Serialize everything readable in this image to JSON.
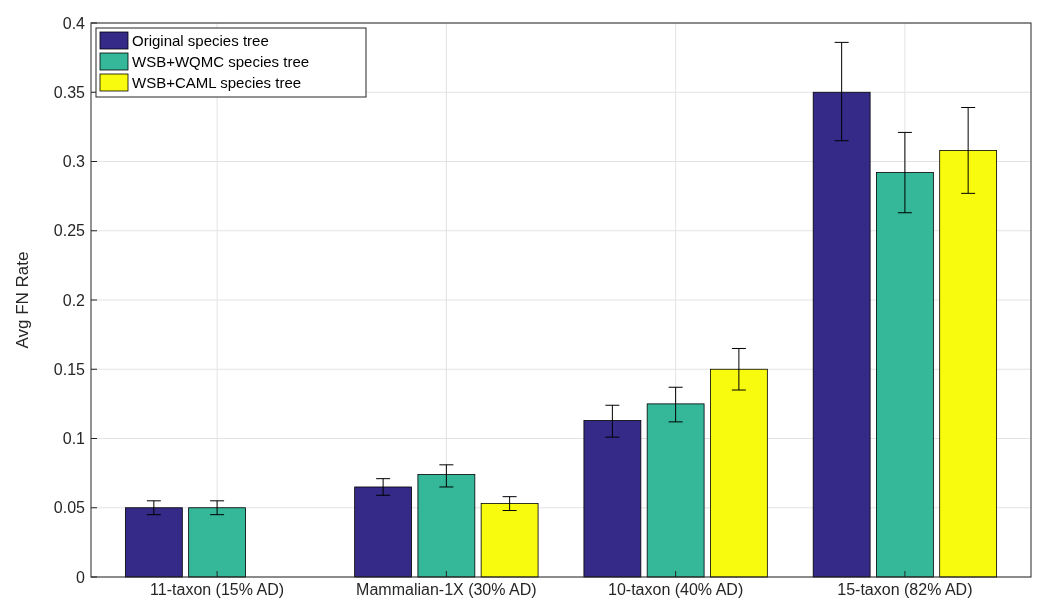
{
  "chart_data": {
    "type": "bar",
    "ylabel": "Avg FN Rate",
    "categories": [
      "11-taxon (15% AD)",
      "Mammalian-1X (30% AD)",
      "10-taxon (40% AD)",
      "15-taxon (82% AD)"
    ],
    "series": [
      {
        "name": "Original species tree",
        "color": "#352a87",
        "values": [
          0.05,
          0.065,
          0.113,
          0.35
        ],
        "errors": [
          0.005,
          0.006,
          [
            0.101,
            0.124
          ],
          [
            0.315,
            0.386
          ]
        ]
      },
      {
        "name": "WSB+WQMC species tree",
        "color": "#35b799",
        "values": [
          0.05,
          0.074,
          0.125,
          0.292
        ],
        "errors": [
          0.005,
          [
            0.065,
            0.081
          ],
          [
            0.112,
            0.137
          ],
          [
            0.263,
            0.321
          ]
        ]
      },
      {
        "name": "WSB+CAML species tree",
        "color": "#f9fb0e",
        "values": [
          null,
          0.053,
          0.15,
          0.308
        ],
        "errors": [
          null,
          0.005,
          0.015,
          [
            0.277,
            0.339
          ]
        ]
      }
    ],
    "ylim": [
      0,
      0.4
    ],
    "yticks": [
      0,
      0.05,
      0.1,
      0.15,
      0.2,
      0.25,
      0.3,
      0.35,
      0.4
    ],
    "grid": true,
    "legend": "top left"
  }
}
